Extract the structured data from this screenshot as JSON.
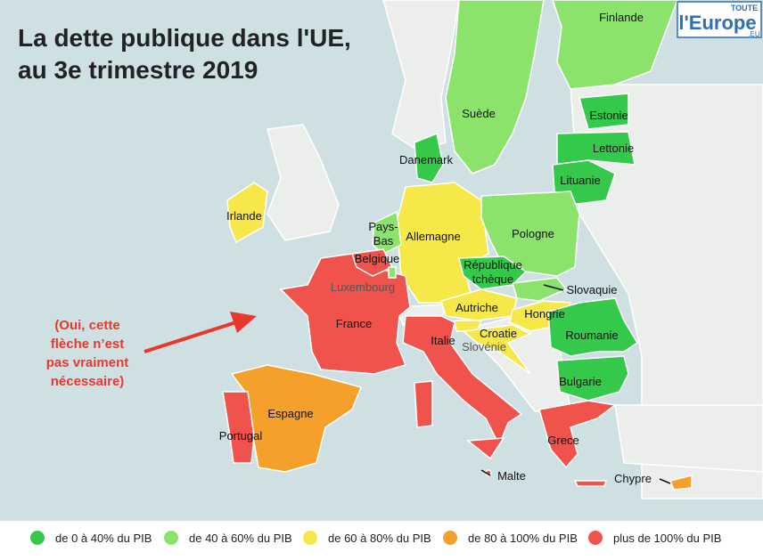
{
  "title": [
    "La dette publique dans l'UE,",
    "au 3e trimestre 2019"
  ],
  "logo": {
    "top": "TOUTE",
    "main": "l'Europe",
    "suffix": ".EU"
  },
  "annotation": [
    "(Oui, cette",
    "flèche n’est",
    "pas vraiment",
    "nécessaire)"
  ],
  "countries": [
    {
      "label": "Finlande",
      "color": "#8be36b"
    },
    {
      "label": "Suède",
      "color": "#8be36b"
    },
    {
      "label": "Estonie",
      "color": "#34c94a"
    },
    {
      "label": "Lettonie",
      "color": "#34c94a"
    },
    {
      "label": "Lituanie",
      "color": "#34c94a"
    },
    {
      "label": "Danemark",
      "color": "#34c94a"
    },
    {
      "label": "Irlande",
      "color": "#f7e84a"
    },
    {
      "label": [
        "Pays-",
        "Bas"
      ],
      "color": "#8be36b"
    },
    {
      "label": "Allemagne",
      "color": "#f7e84a"
    },
    {
      "label": "Pologne",
      "color": "#8be36b"
    },
    {
      "label": "Belgique",
      "color": "#f0524c"
    },
    {
      "label": "Luxembourg",
      "color": "#8be36b"
    },
    {
      "label": [
        "République",
        "tchèque"
      ],
      "color": "#34c94a"
    },
    {
      "label": "Slovaquie",
      "color": "#8be36b"
    },
    {
      "label": "France",
      "color": "#f0524c"
    },
    {
      "label": "Autriche",
      "color": "#f7e84a"
    },
    {
      "label": "Hongrie",
      "color": "#f7e84a"
    },
    {
      "label": "Croatie",
      "color": "#f7e84a"
    },
    {
      "label": "Slovénie",
      "color": "#f7e84a"
    },
    {
      "label": "Italie",
      "color": "#f0524c"
    },
    {
      "label": "Roumanie",
      "color": "#34c94a"
    },
    {
      "label": "Bulgarie",
      "color": "#34c94a"
    },
    {
      "label": "Espagne",
      "color": "#f5a02a"
    },
    {
      "label": "Portugal",
      "color": "#f0524c"
    },
    {
      "label": "Grece",
      "color": "#f0524c"
    },
    {
      "label": "Malte",
      "color": "#f0524c"
    },
    {
      "label": "Chypre",
      "color": "#f5a02a"
    }
  ],
  "legend": [
    {
      "label": "de 0 à 40% du PIB",
      "color": "#34c94a"
    },
    {
      "label": "de 40 à 60% du PIB",
      "color": "#8be36b"
    },
    {
      "label": "de 60 à 80% du PIB",
      "color": "#f7e84a"
    },
    {
      "label": "de 80 à 100% du PIB",
      "color": "#f5a02a"
    },
    {
      "label": "plus de 100% du PIB",
      "color": "#f0524c"
    }
  ]
}
